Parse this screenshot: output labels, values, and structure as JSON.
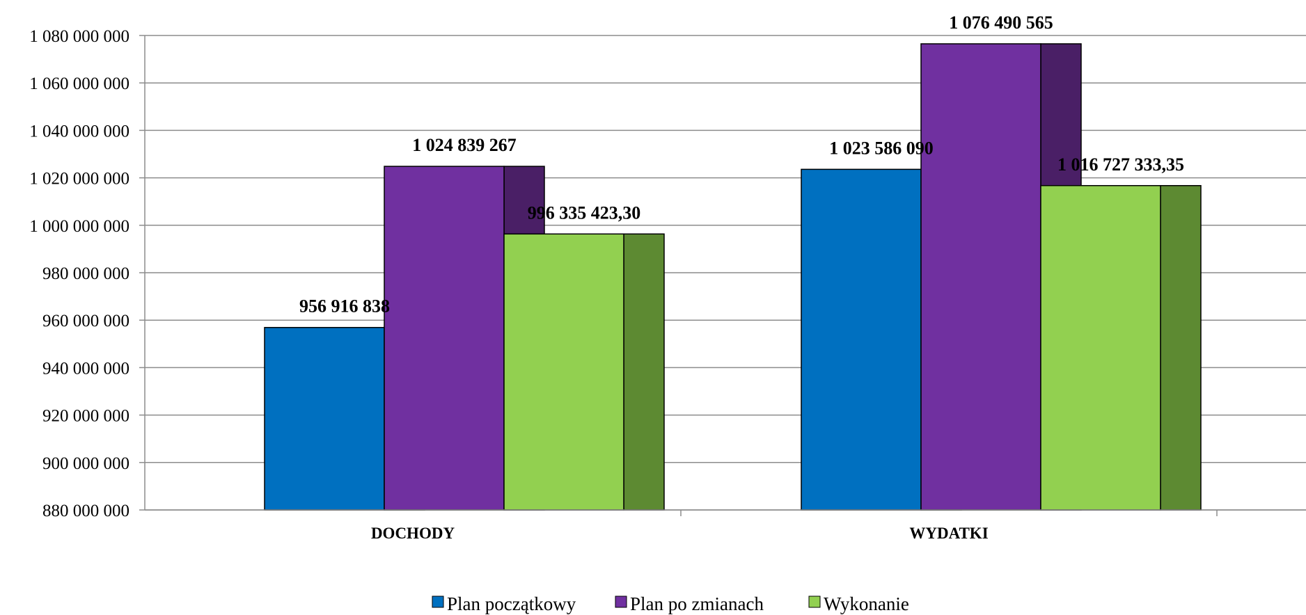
{
  "chart_data": {
    "type": "bar",
    "categories": [
      "DOCHODY",
      "WYDATKI"
    ],
    "series": [
      {
        "name": "Plan początkowy",
        "values": [
          956916838,
          1023586090
        ],
        "labels": [
          "956 916 838",
          "1 023 586 090"
        ],
        "color": "#0070C0",
        "side_color": "#0070C0"
      },
      {
        "name": "Plan po zmianach",
        "values": [
          1024839267,
          1076490565
        ],
        "labels": [
          "1 024 839 267",
          "1 076 490 565"
        ],
        "color": "#7030A0",
        "side_color": "#4A1F66"
      },
      {
        "name": "Wykonanie",
        "values": [
          996335423.3,
          1016727333.35
        ],
        "labels": [
          "996 335 423,30",
          "1 016 727 333,35"
        ],
        "color": "#92D050",
        "side_color": "#5D8A32"
      }
    ],
    "ylim": [
      880000000,
      1080000000
    ],
    "ytick_step": 20000000,
    "ytick_labels": [
      "880 000 000",
      "900 000 000",
      "920 000 000",
      "940 000 000",
      "960 000 000",
      "980 000 000",
      "1 000 000 000",
      "1 020 000 000",
      "1 040 000 000",
      "1 060 000 000",
      "1 080 000 000"
    ],
    "grid": true,
    "legend_position": "bottom"
  }
}
